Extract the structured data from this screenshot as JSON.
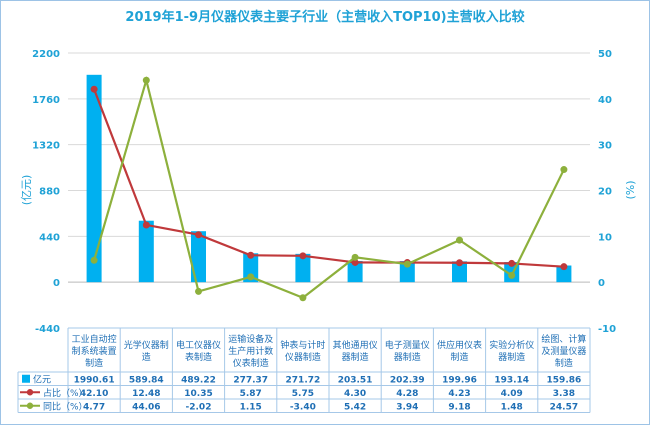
{
  "chart_data": {
    "type": "bar",
    "title": "2019年1-9月仪器仪表主要子行业（主营收入TOP10)主营收入比较",
    "categories": [
      "工业自动控制系统装置制造",
      "光学仪器制造",
      "电工仪器仪表制造",
      "运输设备及生产用计数仪表制造",
      "钟表与计时仪器制造",
      "其他通用仪器制造",
      "电子测量仪器制造",
      "供应用仪表制造",
      "实验分析仪器制造",
      "绘图、计算及测量仪器制造"
    ],
    "category_lines": [
      [
        "工业自动控",
        "制系统装置",
        "制造"
      ],
      [
        "光学仪器制",
        "造"
      ],
      [
        "电工仪器仪",
        "表制造"
      ],
      [
        "运输设备及",
        "生产用计数",
        "仪表制造"
      ],
      [
        "钟表与计时",
        "仪器制造"
      ],
      [
        "其他通用仪",
        "器制造"
      ],
      [
        "电子测量仪",
        "器制造"
      ],
      [
        "供应用仪表",
        "制造"
      ],
      [
        "实验分析仪",
        "器制造"
      ],
      [
        "绘图、计算",
        "及测量仪器",
        "制造"
      ]
    ],
    "ylabel_left": "(亿元)",
    "ylabel_right": "(%)",
    "ylim_left": [
      -440,
      2200
    ],
    "yticks_left": [
      "2200",
      "1760",
      "1320",
      "880",
      "440",
      "0",
      "-440"
    ],
    "ylim_right": [
      -10,
      50
    ],
    "yticks_right": [
      "50",
      "40",
      "30",
      "20",
      "10",
      "0",
      "-10"
    ],
    "series": [
      {
        "name": "亿元",
        "type": "bar",
        "axis": "left",
        "color": "#00b0f0",
        "values": [
          1990.61,
          589.84,
          489.22,
          277.37,
          271.72,
          203.51,
          202.39,
          199.96,
          193.14,
          159.86
        ],
        "labels": [
          "1990.61",
          "589.84",
          "489.22",
          "277.37",
          "271.72",
          "203.51",
          "202.39",
          "199.96",
          "193.14",
          "159.86"
        ]
      },
      {
        "name": "占比（%）",
        "type": "line",
        "axis": "right",
        "color": "#c0393b",
        "values": [
          42.1,
          12.48,
          10.35,
          5.87,
          5.75,
          4.3,
          4.28,
          4.23,
          4.09,
          3.38
        ],
        "labels": [
          "42.10",
          "12.48",
          "10.35",
          "5.87",
          "5.75",
          "4.30",
          "4.28",
          "4.23",
          "4.09",
          "3.38"
        ]
      },
      {
        "name": "同比（%）",
        "type": "line",
        "axis": "right",
        "color": "#8db03c",
        "values": [
          4.77,
          44.06,
          -2.02,
          1.15,
          -3.4,
          5.42,
          3.94,
          9.18,
          1.48,
          24.57
        ],
        "labels": [
          "4.77",
          "44.06",
          "-2.02",
          "1.15",
          "-3.40",
          "5.42",
          "3.94",
          "9.18",
          "1.48",
          "24.57"
        ]
      }
    ]
  }
}
